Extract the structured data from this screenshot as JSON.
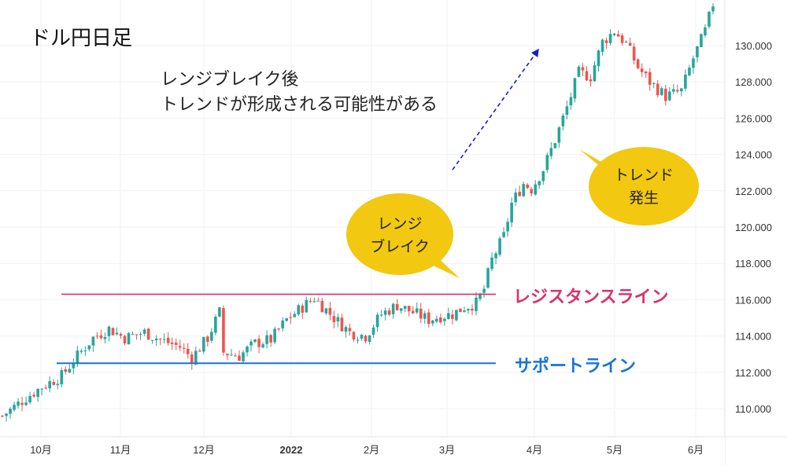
{
  "title": "ドル円日足",
  "annotation": {
    "lines": [
      "レンジブレイク後",
      "トレンドが形成される可能性がある"
    ]
  },
  "bubbles": [
    {
      "id": "range-break",
      "lines": [
        "レンジ",
        "ブレイク"
      ]
    },
    {
      "id": "trend",
      "lines": [
        "トレンド",
        "発生"
      ]
    }
  ],
  "levels": {
    "resistance": {
      "label": "レジスタンスライン",
      "value": 116.3,
      "color": "#d6336c"
    },
    "support": {
      "label": "サポートライン",
      "value": 112.5,
      "color": "#1a73d9"
    }
  },
  "colors": {
    "up": "#26a69a",
    "down": "#ef5350",
    "bubble": "#f2c811",
    "arrow": "#1a1acc"
  },
  "chart_data": {
    "type": "candlestick",
    "title": "ドル円日足",
    "x_ticks": [
      "10月",
      "11月",
      "12月",
      "2022",
      "2月",
      "3月",
      "4月",
      "5月",
      "6月"
    ],
    "y_ticks": [
      "110.000",
      "112.000",
      "114.000",
      "116.000",
      "118.000",
      "120.000",
      "122.000",
      "124.000",
      "126.000",
      "128.000",
      "130.000"
    ],
    "y_range": [
      108.6,
      132.5
    ],
    "path": [
      [
        0,
        109.6
      ],
      [
        6,
        110.6
      ],
      [
        10,
        111.2
      ],
      [
        15,
        111.8
      ],
      [
        19,
        112.9
      ],
      [
        23,
        113.9
      ],
      [
        27,
        114.4
      ],
      [
        31,
        113.9
      ],
      [
        36,
        114.2
      ],
      [
        40,
        113.8
      ],
      [
        45,
        113.4
      ],
      [
        48,
        112.8
      ],
      [
        52,
        113.9
      ],
      [
        55,
        115.3
      ],
      [
        56,
        113.1
      ],
      [
        60,
        112.9
      ],
      [
        64,
        113.6
      ],
      [
        68,
        113.8
      ],
      [
        72,
        114.9
      ],
      [
        76,
        115.6
      ],
      [
        79,
        116.1
      ],
      [
        84,
        115.0
      ],
      [
        88,
        114.2
      ],
      [
        92,
        114.0
      ],
      [
        96,
        115.2
      ],
      [
        100,
        115.7
      ],
      [
        103,
        115.4
      ],
      [
        108,
        114.9
      ],
      [
        111,
        115.1
      ],
      [
        114,
        115.2
      ],
      [
        117,
        115.6
      ],
      [
        120,
        115.8
      ],
      [
        122,
        116.6
      ],
      [
        124,
        118.2
      ],
      [
        127,
        119.5
      ],
      [
        129,
        121.3
      ],
      [
        132,
        122.4
      ],
      [
        134,
        122.1
      ],
      [
        137,
        123.2
      ],
      [
        140,
        124.8
      ],
      [
        143,
        126.6
      ],
      [
        146,
        128.5
      ],
      [
        149,
        128.3
      ],
      [
        152,
        130.2
      ],
      [
        155,
        130.8
      ],
      [
        158,
        130.1
      ],
      [
        161,
        128.8
      ],
      [
        164,
        128.0
      ],
      [
        168,
        127.2
      ],
      [
        172,
        127.5
      ],
      [
        175,
        129.3
      ],
      [
        178,
        130.8
      ],
      [
        180,
        132.3
      ]
    ],
    "candles_count": 181
  }
}
